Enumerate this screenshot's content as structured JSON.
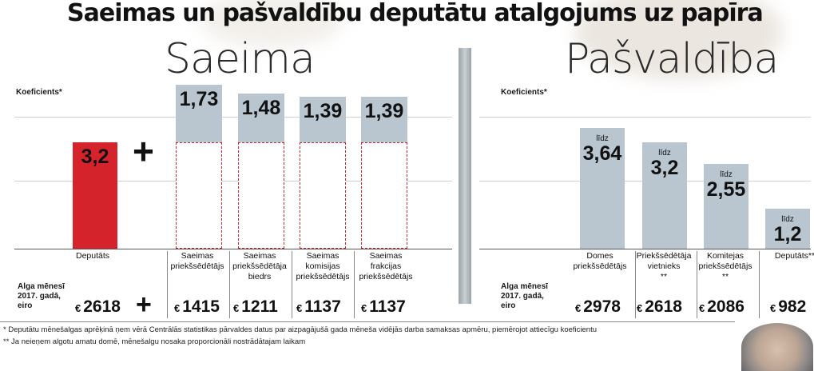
{
  "title": "Saeimas un pašvaldību deputātu atalgojums uz papīra",
  "saeima": {
    "heading": "Saeima",
    "coef_label": "Koeficients*",
    "plus_symbol": "+",
    "bars": [
      {
        "category": [
          "Deputāts"
        ],
        "value": 3.2,
        "value_label": "3,2",
        "color": "#d4232a",
        "salary": "2618"
      },
      {
        "category": [
          "Saeimas",
          "priekšsēdētājs"
        ],
        "value": 1.73,
        "value_label": "1,73",
        "color": "#b9c6d0",
        "salary": "1415"
      },
      {
        "category": [
          "Saeimas",
          "priekšsēdētāja",
          "biedrs"
        ],
        "value": 1.48,
        "value_label": "1,48",
        "color": "#b9c6d0",
        "salary": "1211"
      },
      {
        "category": [
          "Saeimas",
          "komisijas",
          "priekšsēdētājs"
        ],
        "value": 1.39,
        "value_label": "1,39",
        "color": "#b9c6d0",
        "salary": "1137"
      },
      {
        "category": [
          "Saeimas",
          "frakcijas",
          "priekšsēdētājs"
        ],
        "value": 1.39,
        "value_label": "1,39",
        "color": "#b9c6d0",
        "salary": "1137"
      }
    ]
  },
  "pasvaldiba": {
    "heading": "Pašvaldība",
    "coef_label": "Koeficients*",
    "bars": [
      {
        "category": [
          "Domes",
          "priekšsēdētājs"
        ],
        "prefix": "līdz",
        "value": 3.64,
        "value_label": "3,64",
        "color": "#b9c6d0",
        "salary": "2978"
      },
      {
        "category": [
          "Priekšsēdētāja",
          "vietnieks",
          "**"
        ],
        "prefix": "līdz",
        "value": 3.2,
        "value_label": "3,2",
        "color": "#b9c6d0",
        "salary": "2618"
      },
      {
        "category": [
          "Komitejas",
          "priekšsēdētājs",
          "**"
        ],
        "prefix": "līdz",
        "value": 2.55,
        "value_label": "2,55",
        "color": "#b9c6d0",
        "salary": "2086"
      },
      {
        "category": [
          "Deputāts**"
        ],
        "prefix": "līdz",
        "value": 1.2,
        "value_label": "1,2",
        "color": "#b9c6d0",
        "salary": "982"
      }
    ]
  },
  "salary_label": [
    "Alga mēnesī",
    "2017. gadā,",
    "eiro"
  ],
  "currency_symbol": "€",
  "footnotes": [
    "* Deputātu mēnešalgas aprēķinā ņem vērā Centrālās statistikas pārvaldes datus par aizpagājušā gada mēneša vidējās darba samaksas apmēru, piemērojot attiecīgu koeficientu",
    "** Ja neieņem algotu amatu domē, mēnešalgu nosaka proporcionāli nostrādātajam laikam"
  ],
  "chart_data": [
    {
      "type": "bar",
      "title": "Saeima",
      "ylabel": "Koeficients*",
      "categories": [
        "Deputāts",
        "Saeimas priekšsēdētājs",
        "Saeimas priekšsēdētāja biedrs",
        "Saeimas komisijas priekšsēdētājs",
        "Saeimas frakcijas priekšsēdētājs"
      ],
      "values": [
        3.2,
        1.73,
        1.48,
        1.39,
        1.39
      ],
      "salary_eur": [
        2618,
        1415,
        1211,
        1137,
        1137
      ],
      "ylim": [
        0,
        4.5
      ],
      "grid": true
    },
    {
      "type": "bar",
      "title": "Pašvaldība",
      "ylabel": "Koeficients*",
      "categories": [
        "Domes priekšsēdētājs",
        "Priekšsēdētāja vietnieks **",
        "Komitejas priekšsēdētājs **",
        "Deputāts**"
      ],
      "values": [
        3.64,
        3.2,
        2.55,
        1.2
      ],
      "salary_eur": [
        2978,
        2618,
        2086,
        982
      ],
      "ylim": [
        0,
        4.5
      ],
      "grid": true
    }
  ]
}
